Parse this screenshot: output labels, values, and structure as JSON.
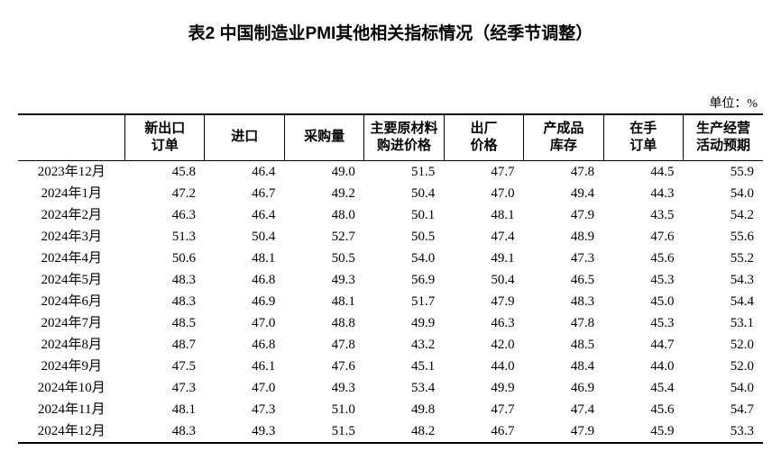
{
  "title": "表2 中国制造业PMI其他相关指标情况（经季节调整）",
  "unit_label": "单位：%",
  "table": {
    "type": "table",
    "background_color": "#ffffff",
    "text_color": "#000000",
    "border_color": "#000000",
    "title_fontsize": 19,
    "header_fontsize": 15,
    "body_fontsize": 15,
    "columns": [
      "",
      "新出口\n订单",
      "进口",
      "采购量",
      "主要原材料\n购进价格",
      "出厂\n价格",
      "产成品\n库存",
      "在手\n订单",
      "生产经营\n活动预期"
    ],
    "column_align": [
      "center",
      "right",
      "right",
      "right",
      "right",
      "right",
      "right",
      "right",
      "right"
    ],
    "rows": [
      [
        "2023年12月",
        "45.8",
        "46.4",
        "49.0",
        "51.5",
        "47.7",
        "47.8",
        "44.5",
        "55.9"
      ],
      [
        "2024年1月",
        "47.2",
        "46.7",
        "49.2",
        "50.4",
        "47.0",
        "49.4",
        "44.3",
        "54.0"
      ],
      [
        "2024年2月",
        "46.3",
        "46.4",
        "48.0",
        "50.1",
        "48.1",
        "47.9",
        "43.5",
        "54.2"
      ],
      [
        "2024年3月",
        "51.3",
        "50.4",
        "52.7",
        "50.5",
        "47.4",
        "48.9",
        "47.6",
        "55.6"
      ],
      [
        "2024年4月",
        "50.6",
        "48.1",
        "50.5",
        "54.0",
        "49.1",
        "47.3",
        "45.6",
        "55.2"
      ],
      [
        "2024年5月",
        "48.3",
        "46.8",
        "49.3",
        "56.9",
        "50.4",
        "46.5",
        "45.3",
        "54.3"
      ],
      [
        "2024年6月",
        "48.3",
        "46.9",
        "48.1",
        "51.7",
        "47.9",
        "48.3",
        "45.0",
        "54.4"
      ],
      [
        "2024年7月",
        "48.5",
        "47.0",
        "48.8",
        "49.9",
        "46.3",
        "47.8",
        "45.3",
        "53.1"
      ],
      [
        "2024年8月",
        "48.7",
        "46.8",
        "47.8",
        "43.2",
        "42.0",
        "48.5",
        "44.7",
        "52.0"
      ],
      [
        "2024年9月",
        "47.5",
        "46.1",
        "47.6",
        "45.1",
        "44.0",
        "48.4",
        "44.0",
        "52.0"
      ],
      [
        "2024年10月",
        "47.3",
        "47.0",
        "49.3",
        "53.4",
        "49.9",
        "46.9",
        "45.4",
        "54.0"
      ],
      [
        "2024年11月",
        "48.1",
        "47.3",
        "51.0",
        "49.8",
        "47.7",
        "47.4",
        "45.6",
        "54.7"
      ],
      [
        "2024年12月",
        "48.3",
        "49.3",
        "51.5",
        "48.2",
        "46.7",
        "47.9",
        "45.9",
        "53.3"
      ]
    ]
  }
}
